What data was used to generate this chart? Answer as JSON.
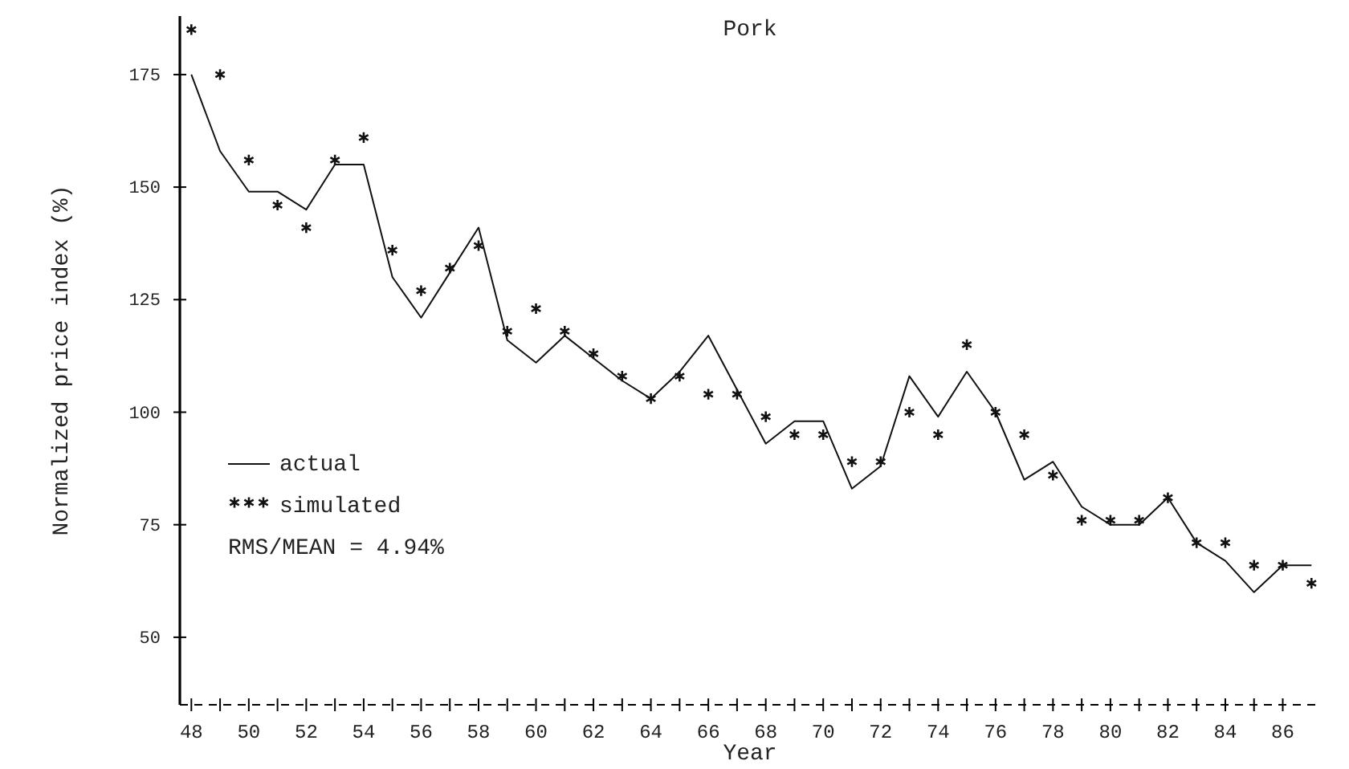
{
  "chart_data": {
    "type": "line",
    "title": "Pork",
    "xlabel": "Year",
    "ylabel": "Normalized price index (%)",
    "x": [
      48,
      49,
      50,
      51,
      52,
      53,
      54,
      55,
      56,
      57,
      58,
      59,
      60,
      61,
      62,
      63,
      64,
      65,
      66,
      67,
      68,
      69,
      70,
      71,
      72,
      73,
      74,
      75,
      76,
      77,
      78,
      79,
      80,
      81,
      82,
      83,
      84,
      85,
      86,
      87
    ],
    "series": [
      {
        "name": "actual",
        "color": "#111111",
        "line_style": "solid",
        "marker": "none",
        "values": [
          175,
          158,
          149,
          149,
          145,
          155,
          155,
          130,
          121,
          131,
          141,
          116,
          111,
          117,
          112,
          107,
          103,
          109,
          117,
          105,
          93,
          98,
          98,
          83,
          88,
          108,
          99,
          109,
          100,
          85,
          89,
          79,
          75,
          75,
          81,
          71,
          67,
          60,
          66,
          66
        ]
      },
      {
        "name": "simulated",
        "type": "scatter",
        "color": "#111111",
        "marker": "cross",
        "values": [
          185,
          175,
          156,
          146,
          141,
          156,
          161,
          136,
          127,
          132,
          137,
          118,
          123,
          118,
          113,
          108,
          103,
          108,
          104,
          104,
          99,
          95,
          95,
          89,
          89,
          100,
          95,
          115,
          100,
          95,
          86,
          76,
          76,
          76,
          81,
          71,
          71,
          66,
          66,
          62
        ]
      }
    ],
    "xlim": [
      47.6,
      87.3
    ],
    "ylim": [
      35,
      188
    ],
    "xticks": [
      48,
      {
        "value": 49,
        "label": null
      },
      50,
      {
        "value": 51,
        "label": null
      },
      52,
      {
        "value": 53,
        "label": null
      },
      54,
      {
        "value": 55,
        "label": null
      },
      56,
      {
        "value": 57,
        "label": null
      },
      58,
      {
        "value": 59,
        "label": null
      },
      60,
      {
        "value": 61,
        "label": null
      },
      62,
      {
        "value": 63,
        "label": null
      },
      64,
      {
        "value": 65,
        "label": null
      },
      66,
      {
        "value": 67,
        "label": null
      },
      68,
      {
        "value": 69,
        "label": null
      },
      70,
      {
        "value": 71,
        "label": null
      },
      72,
      {
        "value": 73,
        "label": null
      },
      74,
      {
        "value": 75,
        "label": null
      },
      76,
      {
        "value": 77,
        "label": null
      },
      78,
      {
        "value": 79,
        "label": null
      },
      80,
      {
        "value": 81,
        "label": null
      },
      82,
      {
        "value": 83,
        "label": null
      },
      84,
      {
        "value": 85,
        "label": null
      },
      86
    ],
    "yticks": [
      50,
      75,
      100,
      125,
      150,
      175
    ],
    "grid": false,
    "legend": "bottom left",
    "annotations": [
      "RMS/MEAN = 4.94%"
    ]
  }
}
